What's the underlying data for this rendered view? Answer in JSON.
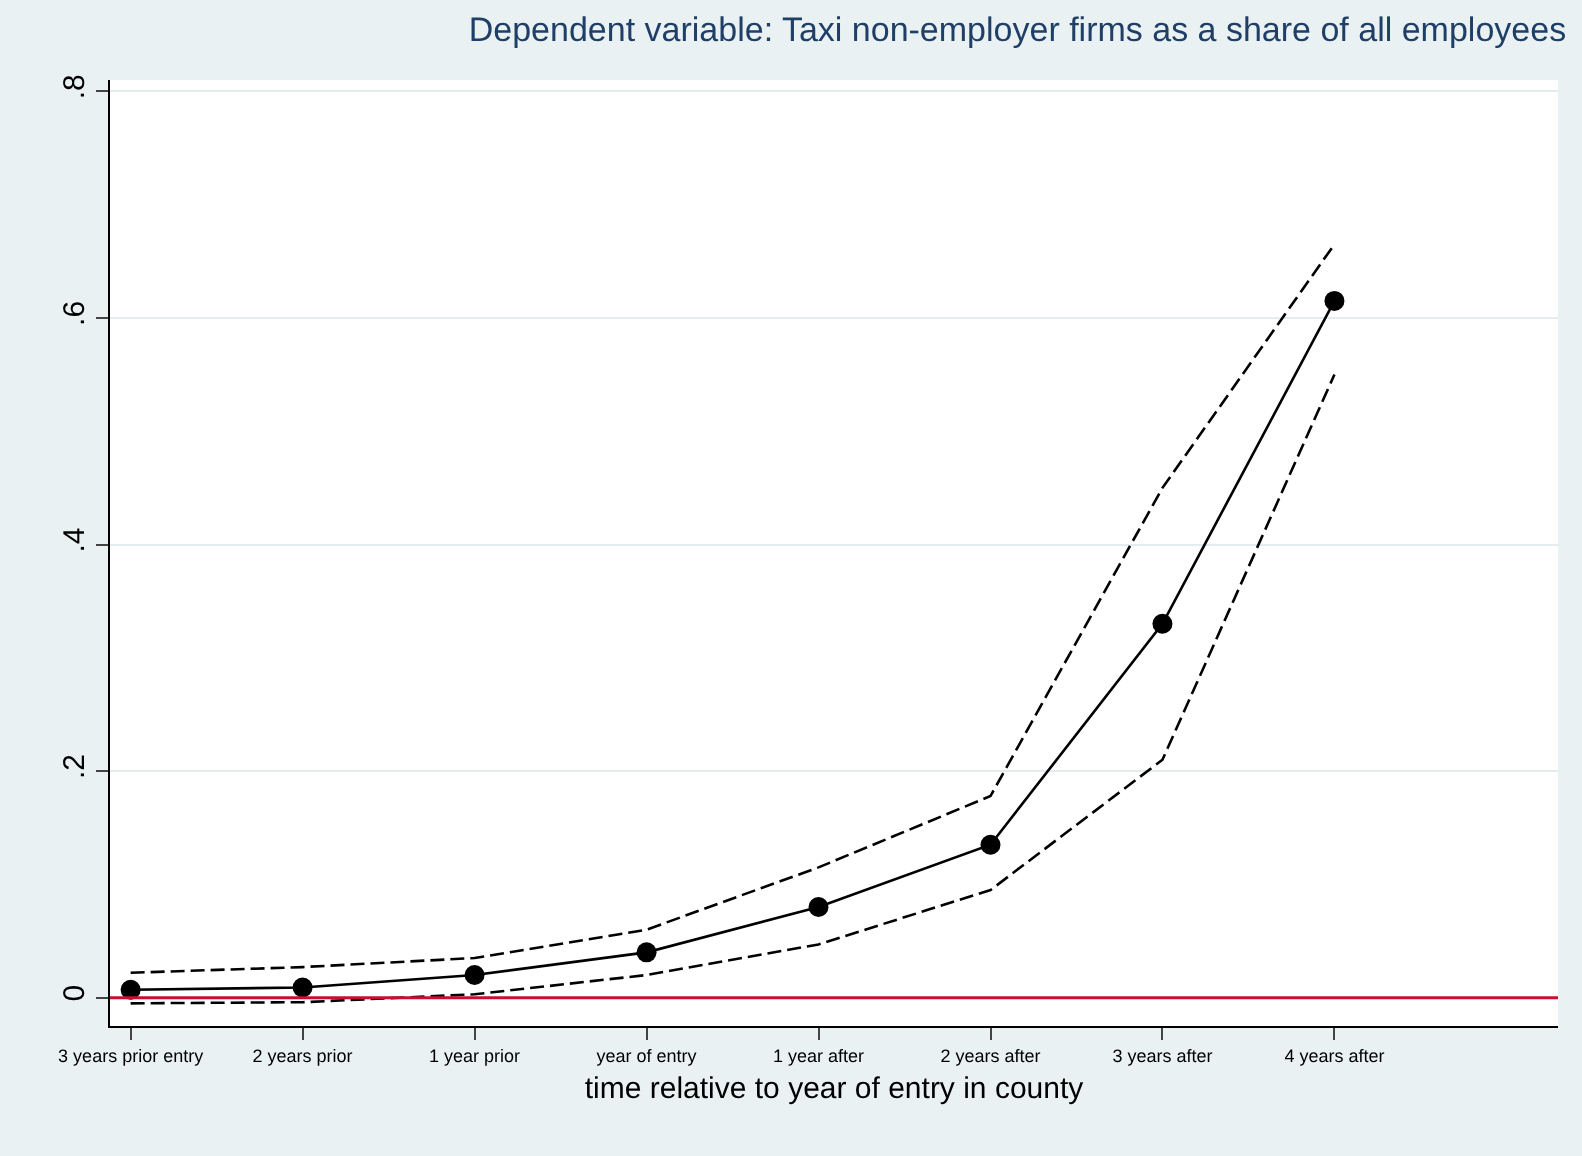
{
  "chart_data": {
    "type": "line",
    "title": "Dependent variable: Taxi non-employer firms as a share of all employees",
    "xlabel": "time relative to year of entry in county",
    "categories": [
      "3 years prior entry",
      "2 years prior",
      "1 year prior",
      "year of entry",
      "1 year after",
      "2 years after",
      "3 years after",
      "4 years after"
    ],
    "series": [
      {
        "color": "#000000",
        "values": [
          0.007,
          0.009,
          0.02,
          0.04,
          0.08,
          0.135,
          0.33,
          0.615
        ]
      },
      {
        "color": "#000000",
        "line_style": "dashed",
        "marker": "none",
        "values": [
          0.022,
          0.027,
          0.035,
          0.06,
          0.115,
          0.178,
          0.45,
          0.665
        ]
      },
      {
        "color": "#000000",
        "line_style": "dashed",
        "marker": "none",
        "values": [
          -0.005,
          -0.004,
          0.003,
          0.02,
          0.047,
          0.095,
          0.21,
          0.55
        ]
      }
    ],
    "ylim": [
      -0.025,
      0.81
    ],
    "yticks": [
      {
        "value": 0,
        "label": "0"
      },
      {
        "value": 0.2,
        "label": ".2"
      },
      {
        "value": 0.4,
        "label": ".4"
      },
      {
        "value": 0.6,
        "label": ".6"
      },
      {
        "value": 0.8,
        "label": ".8"
      }
    ],
    "ref_lines": [
      {
        "axis": "y",
        "value": 0,
        "color": "#c8102e"
      }
    ],
    "grid": "y",
    "marker": "circle",
    "line_style": "solid"
  }
}
